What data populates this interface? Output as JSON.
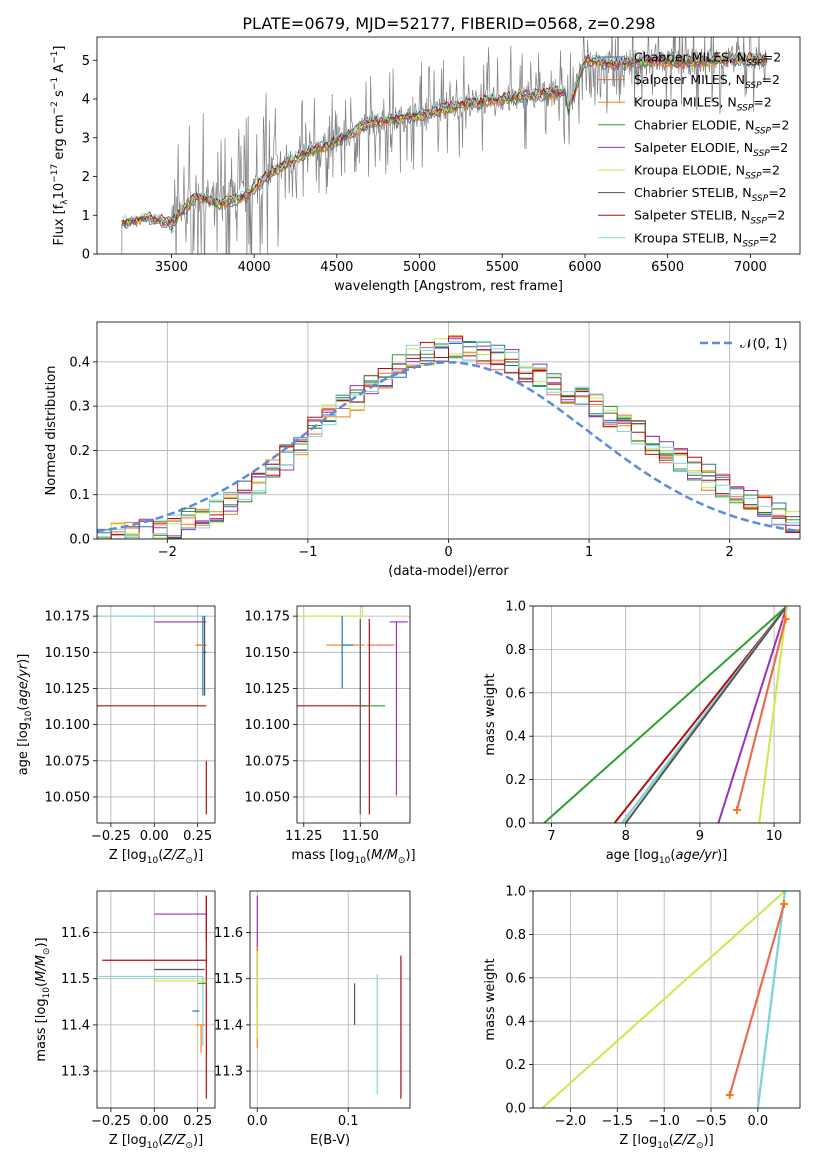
{
  "figure_title": "PLATE=0679, MJD=52177, FIBERID=0568, z=0.298",
  "models": [
    {
      "name": "Chabrier MILES, N",
      "color": "#1f77b4"
    },
    {
      "name": "Salpeter MILES, N",
      "color": "#e96a52"
    },
    {
      "name": "Kroupa MILES, N",
      "color": "#ff7f0e"
    },
    {
      "name": "Chabrier ELODIE, N",
      "color": "#2ca02c"
    },
    {
      "name": "Salpeter ELODIE, N",
      "color": "#9b30c0"
    },
    {
      "name": "Kroupa ELODIE, N",
      "color": "#cce94a"
    },
    {
      "name": "Chabrier STELIB, N",
      "color": "#555555"
    },
    {
      "name": "Salpeter STELIB, N",
      "color": "#b20f0f"
    },
    {
      "name": "Kroupa STELIB, N",
      "color": "#7fd8d8"
    }
  ],
  "legend_sub": "SSP",
  "legend_suffix": "=2",
  "chart_data": [
    {
      "id": "spectrum",
      "type": "line",
      "xlabel": "wavelength [Angstrom, rest frame]",
      "ylabel": "Flux [f",
      "ylabel_sub": "λ",
      "ylabel_rest": "10",
      "ylabel_exp": "−17",
      "ylabel_tail": " erg cm",
      "xlim": [
        3050,
        7300
      ],
      "ylim": [
        0,
        5.6
      ],
      "xticks": [
        3500,
        4000,
        4500,
        5000,
        5500,
        6000,
        6500,
        7000
      ],
      "yticks": [
        0,
        1,
        2,
        3,
        4,
        5
      ],
      "data_color": "#808080",
      "data_range": [
        3200,
        7100
      ],
      "model_anchors_x": [
        3200,
        3350,
        3500,
        3650,
        3800,
        3950,
        4100,
        4300,
        4500,
        4700,
        4900,
        5100,
        5300,
        5500,
        5700,
        5880,
        5900,
        6000,
        6200,
        6400,
        6600,
        6800,
        7000,
        7100
      ],
      "model_anchors_y": [
        0.8,
        0.95,
        0.8,
        1.5,
        1.3,
        1.5,
        2.1,
        2.6,
        2.9,
        3.4,
        3.5,
        3.7,
        3.9,
        4.0,
        4.1,
        4.2,
        3.7,
        5.0,
        4.9,
        5.0,
        4.95,
        5.0,
        5.05,
        5.0
      ],
      "legend_position": "upper-right"
    },
    {
      "id": "residuals",
      "type": "step-histogram",
      "xlabel": "(data-model)/error",
      "ylabel": "Normed distribution",
      "xlim": [
        -2.5,
        2.5
      ],
      "ylim": [
        0,
        0.49
      ],
      "xticks": [
        -2,
        -1,
        0,
        1,
        2
      ],
      "yticks": [
        0.0,
        0.1,
        0.2,
        0.3,
        0.4
      ],
      "bin_edges": [
        -2.6,
        -2.5,
        -2.4,
        -2.3,
        -2.2,
        -2.1,
        -2.0,
        -1.9,
        -1.8,
        -1.7,
        -1.6,
        -1.5,
        -1.4,
        -1.3,
        -1.2,
        -1.1,
        -1.0,
        -0.9,
        -0.8,
        -0.7,
        -0.6,
        -0.5,
        -0.4,
        -0.3,
        -0.2,
        -0.1,
        0.0,
        0.1,
        0.2,
        0.3,
        0.4,
        0.5,
        0.6,
        0.7,
        0.8,
        0.9,
        1.0,
        1.1,
        1.2,
        1.3,
        1.4,
        1.5,
        1.6,
        1.7,
        1.8,
        1.9,
        2.0,
        2.1,
        2.2,
        2.3,
        2.4,
        2.5
      ],
      "base_values": [
        0.0,
        0.005,
        0.008,
        0.01,
        0.015,
        0.02,
        0.03,
        0.04,
        0.05,
        0.065,
        0.085,
        0.105,
        0.13,
        0.155,
        0.185,
        0.21,
        0.245,
        0.275,
        0.3,
        0.32,
        0.35,
        0.37,
        0.39,
        0.41,
        0.42,
        0.43,
        0.435,
        0.43,
        0.42,
        0.41,
        0.4,
        0.385,
        0.365,
        0.35,
        0.335,
        0.315,
        0.3,
        0.28,
        0.26,
        0.24,
        0.22,
        0.2,
        0.18,
        0.16,
        0.14,
        0.12,
        0.1,
        0.085,
        0.07,
        0.055,
        0.04
      ],
      "gaussian_label": "𝒩(0, 1)",
      "gaussian_color": "#5b8bd9",
      "legend_position": "upper-right"
    },
    {
      "id": "age-vs-z",
      "type": "errorbar",
      "xlabel": "Z [log",
      "xlabel_sub": "10",
      "xlabel_rest": "(Z/Z",
      "xlabel_sun_sub": "⊙",
      "xlabel_tail": ")]",
      "ylabel": "age  [log",
      "ylabel_sub": "10",
      "ylabel_rest": "(age/yr)]",
      "xlim": [
        -0.33,
        0.35
      ],
      "ylim": [
        10.032,
        10.182
      ],
      "xticks": [
        -0.25,
        0.0,
        0.25
      ],
      "yticks": [
        10.05,
        10.075,
        10.1,
        10.125,
        10.15,
        10.175
      ],
      "points": [
        {
          "x": 0.29,
          "y": 10.175,
          "xerr": [
            0.63,
            0.02
          ],
          "yerr": [
            0.0,
            0.0
          ],
          "c": 8
        },
        {
          "x": 0.29,
          "y": 10.171,
          "xerr": [
            0.29,
            0.01
          ],
          "yerr": [
            0.0,
            0.0
          ],
          "c": 4
        },
        {
          "x": 0.28,
          "y": 10.155,
          "xerr": [
            0.04,
            0.02
          ],
          "yerr": [
            0.035,
            0.02
          ],
          "c": 0
        },
        {
          "x": 0.28,
          "y": 10.155,
          "xerr": [
            0.04,
            0.02
          ],
          "yerr": [
            0.0,
            0.0
          ],
          "c": 2
        },
        {
          "x": 0.29,
          "y": 10.113,
          "xerr": [
            0.62,
            0.01
          ],
          "yerr": [
            0.0,
            0.0
          ],
          "c": 7
        },
        {
          "x": 0.3,
          "y": 10.05,
          "xerr": [
            0.0,
            0.0
          ],
          "yerr": [
            0.012,
            0.025
          ],
          "c": 7
        },
        {
          "x": 0.29,
          "y": 10.15,
          "xerr": [
            0.01,
            0.01
          ],
          "yerr": [
            0.03,
            0.025
          ],
          "c": 6
        }
      ]
    },
    {
      "id": "age-vs-mass",
      "type": "errorbar",
      "xlabel": "mass [log",
      "xlabel_sub": "10",
      "xlabel_rest": "(M/M",
      "xlabel_sun_sub": "⊙",
      "xlabel_tail": ")]",
      "xlim": [
        11.22,
        11.72
      ],
      "ylim": [
        10.032,
        10.182
      ],
      "xticks": [
        11.25,
        11.5
      ],
      "yticks": [
        10.05,
        10.075,
        10.1,
        10.125,
        10.15,
        10.175
      ],
      "points": [
        {
          "x": 11.51,
          "y": 10.175,
          "xerr": [
            0.3,
            0.0
          ],
          "yerr": [
            0.0,
            0.125
          ],
          "c": 5
        },
        {
          "x": 11.66,
          "y": 10.171,
          "xerr": [
            0.03,
            0.05
          ],
          "yerr": [
            0.12,
            0.0
          ],
          "c": 4
        },
        {
          "x": 11.45,
          "y": 10.155,
          "xerr": [
            0.1,
            0.07
          ],
          "yerr": [
            0.0,
            0.0
          ],
          "c": 2
        },
        {
          "x": 11.42,
          "y": 10.155,
          "xerr": [
            0.0,
            0.05
          ],
          "yerr": [
            0.03,
            0.02
          ],
          "c": 0
        },
        {
          "x": 11.53,
          "y": 10.155,
          "xerr": [
            0.0,
            0.12
          ],
          "yerr": [
            0.0,
            0.0
          ],
          "c": 1
        },
        {
          "x": 11.54,
          "y": 10.113,
          "xerr": [
            0.33,
            0.0
          ],
          "yerr": [
            0.075,
            0.06
          ],
          "c": 7
        },
        {
          "x": 11.52,
          "y": 10.113,
          "xerr": [
            0.0,
            0.09
          ],
          "yerr": [
            0.0,
            0.0
          ],
          "c": 3
        },
        {
          "x": 11.5,
          "y": 10.113,
          "xerr": [
            0.0,
            0.0
          ],
          "yerr": [
            0.075,
            0.06
          ],
          "c": 6
        }
      ]
    },
    {
      "id": "weight-vs-age",
      "type": "line",
      "xlabel": "age  [log",
      "xlabel_sub": "10",
      "xlabel_rest": "(age/yr)]",
      "ylabel": "mass weight",
      "xlim": [
        6.75,
        10.35
      ],
      "ylim": [
        0,
        1
      ],
      "xticks": [
        7,
        8,
        9,
        10
      ],
      "yticks": [
        0.0,
        0.2,
        0.4,
        0.6,
        0.8,
        1.0
      ],
      "lines": [
        {
          "x": [
            6.9,
            10.175
          ],
          "y": [
            0.0,
            1.0
          ],
          "c": 3
        },
        {
          "x": [
            7.85,
            10.175
          ],
          "y": [
            0.0,
            1.0
          ],
          "c": 7
        },
        {
          "x": [
            7.95,
            10.175
          ],
          "y": [
            0.0,
            1.0
          ],
          "c": 0
        },
        {
          "x": [
            7.95,
            10.175
          ],
          "y": [
            0.0,
            1.0
          ],
          "c": 8
        },
        {
          "x": [
            8.0,
            10.175
          ],
          "y": [
            0.0,
            1.0
          ],
          "c": 6
        },
        {
          "x": [
            9.25,
            10.175
          ],
          "y": [
            0.0,
            1.0
          ],
          "c": 4
        },
        {
          "x": [
            9.8,
            10.175
          ],
          "y": [
            0.0,
            1.0
          ],
          "c": 5
        },
        {
          "x": [
            9.5,
            10.155
          ],
          "y": [
            0.06,
            0.94
          ],
          "c": 2,
          "markers": true
        },
        {
          "x": [
            9.5,
            10.155
          ],
          "y": [
            0.06,
            0.94
          ],
          "c": 1
        }
      ]
    },
    {
      "id": "mass-vs-z",
      "type": "errorbar",
      "xlabel": "Z [log",
      "xlabel_sub": "10",
      "xlabel_rest": "(Z/Z",
      "xlabel_sun_sub": "⊙",
      "xlabel_tail": ")]",
      "ylabel": "mass [log",
      "ylabel_sub": "10",
      "ylabel_rest": "(M/M",
      "ylabel_sun_sub": "⊙",
      "ylabel_tail": ")]",
      "xlim": [
        -0.33,
        0.35
      ],
      "ylim": [
        11.22,
        11.69
      ],
      "xticks": [
        -0.25,
        0.0,
        0.25
      ],
      "yticks": [
        11.3,
        11.4,
        11.5,
        11.6
      ],
      "points": [
        {
          "x": 0.3,
          "y": 11.64,
          "xerr": [
            0.3,
            0.0
          ],
          "yerr": [
            0.06,
            0.04
          ],
          "c": 4
        },
        {
          "x": 0.3,
          "y": 11.54,
          "xerr": [
            0.6,
            0.0
          ],
          "yerr": [
            0.3,
            0.14
          ],
          "c": 7
        },
        {
          "x": 0.29,
          "y": 11.52,
          "xerr": [
            0.29,
            0.0
          ],
          "yerr": [
            0.0,
            0.0
          ],
          "c": 6
        },
        {
          "x": 0.28,
          "y": 11.505,
          "xerr": [
            0.6,
            0.0
          ],
          "yerr": [
            0.15,
            0.0
          ],
          "c": 8
        },
        {
          "x": 0.28,
          "y": 11.495,
          "xerr": [
            0.28,
            0.02
          ],
          "yerr": [
            0.0,
            0.0
          ],
          "c": 5
        },
        {
          "x": 0.29,
          "y": 11.49,
          "xerr": [
            0.04,
            0.01
          ],
          "yerr": [
            0.0,
            0.0
          ],
          "c": 3
        },
        {
          "x": 0.25,
          "y": 11.43,
          "xerr": [
            0.03,
            0.01
          ],
          "yerr": [
            0.0,
            0.0
          ],
          "c": 0
        },
        {
          "x": 0.27,
          "y": 11.4,
          "xerr": [
            0.03,
            0.02
          ],
          "yerr": [
            0.06,
            0.0
          ],
          "c": 2
        },
        {
          "x": 0.28,
          "y": 11.59,
          "xerr": [
            0.0,
            0.0
          ],
          "yerr": [
            0.0,
            0.0
          ],
          "c": 1
        }
      ]
    },
    {
      "id": "mass-vs-ebv",
      "type": "errorbar",
      "xlabel": "E(B-V)",
      "xlim": [
        -0.008,
        0.168
      ],
      "ylim": [
        11.22,
        11.69
      ],
      "xticks": [
        0.0,
        0.1
      ],
      "yticks": [
        11.3,
        11.4,
        11.5,
        11.6
      ],
      "points": [
        {
          "x": 0.0,
          "y": 11.64,
          "xerr": [
            0.0,
            0.0
          ],
          "yerr": [
            0.21,
            0.04
          ],
          "c": 4
        },
        {
          "x": 0.0,
          "y": 11.5,
          "xerr": [
            0.0,
            0.0
          ],
          "yerr": [
            0.15,
            0.07
          ],
          "c": 2
        },
        {
          "x": 0.0,
          "y": 11.49,
          "xerr": [
            0.0,
            0.0
          ],
          "yerr": [
            0.12,
            0.07
          ],
          "c": 5
        },
        {
          "x": 0.107,
          "y": 11.44,
          "xerr": [
            0.0,
            0.0
          ],
          "yerr": [
            0.04,
            0.05
          ],
          "c": 6
        },
        {
          "x": 0.132,
          "y": 11.38,
          "xerr": [
            0.0,
            0.0
          ],
          "yerr": [
            0.13,
            0.13
          ],
          "c": 8
        },
        {
          "x": 0.158,
          "y": 11.39,
          "xerr": [
            0.0,
            0.0
          ],
          "yerr": [
            0.15,
            0.16
          ],
          "c": 7
        }
      ]
    },
    {
      "id": "weight-vs-z",
      "type": "line",
      "xlabel": "Z [log",
      "xlabel_sub": "10",
      "xlabel_rest": "(Z/Z",
      "xlabel_sun_sub": "⊙",
      "xlabel_tail": ")]",
      "ylabel": "mass weight",
      "xlim": [
        -2.4,
        0.45
      ],
      "ylim": [
        0,
        1
      ],
      "xticks": [
        -2.0,
        -1.5,
        -1.0,
        -0.5,
        0.0
      ],
      "yticks": [
        0.0,
        0.2,
        0.4,
        0.6,
        0.8,
        1.0
      ],
      "lines": [
        {
          "x": [
            -2.3,
            0.29
          ],
          "y": [
            0.0,
            1.0
          ],
          "c": 5
        },
        {
          "x": [
            0.0,
            0.29
          ],
          "y": [
            0.0,
            1.0
          ],
          "c": 0
        },
        {
          "x": [
            0.0,
            0.29
          ],
          "y": [
            0.0,
            1.0
          ],
          "c": 8
        },
        {
          "x": [
            -0.3,
            0.28
          ],
          "y": [
            0.06,
            0.94
          ],
          "c": 2,
          "markers": true
        },
        {
          "x": [
            -0.3,
            0.28
          ],
          "y": [
            0.06,
            0.94
          ],
          "c": 1
        }
      ]
    }
  ]
}
